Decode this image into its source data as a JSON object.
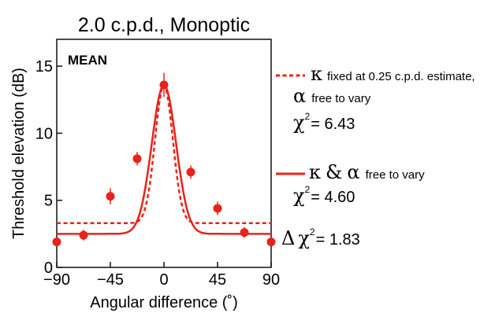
{
  "chart_data": {
    "type": "scatter",
    "title": "2.0 c.p.d., Monoptic",
    "annotation": "MEAN",
    "xlabel": "Angular difference (˚)",
    "ylabel": "Threshold elevation (dB)",
    "xlim": [
      -90,
      90
    ],
    "ylim": [
      0,
      17
    ],
    "xticks": [
      -90,
      -45,
      0,
      45,
      90
    ],
    "xtick_labels": [
      "−90",
      "−45",
      "0",
      "45",
      "90"
    ],
    "yticks": [
      0,
      5,
      10,
      15
    ],
    "ytick_labels": [
      "0",
      "5",
      "10",
      "15"
    ],
    "grid": false,
    "legend_position": "right",
    "colors": {
      "data": "#e8231a",
      "axis": "#111111"
    },
    "data_points": {
      "x": [
        -90,
        -67.5,
        -45,
        -22.5,
        0,
        22.5,
        45,
        67.5,
        90
      ],
      "y": [
        1.9,
        2.4,
        5.3,
        8.1,
        13.6,
        7.1,
        4.4,
        2.6,
        1.9
      ],
      "err": [
        0.3,
        0.4,
        0.6,
        0.5,
        0.9,
        0.5,
        0.5,
        0.4,
        0.3
      ]
    },
    "series": [
      {
        "style": "dashed",
        "baseline": 3.3,
        "peak": 13.6,
        "kappa": 0.009,
        "legend": {
          "symbol1": "κ",
          "text1": "fixed at 0.25 c.p.d. estimate,",
          "symbol2": "α",
          "text2": "free to vary",
          "chi_symbol": "χ",
          "chi_exponent": "2",
          "chi_value": "= 6.43"
        }
      },
      {
        "style": "solid",
        "baseline": 2.5,
        "peak": 13.6,
        "kappa": 0.0048,
        "legend": {
          "symbol1": "κ",
          "amp": "&",
          "symbol2": "α",
          "text": "free to vary",
          "chi_symbol": "χ",
          "chi_exponent": "2",
          "chi_value": "= 4.60"
        }
      }
    ],
    "delta_chi": {
      "delta": "Δ",
      "chi_symbol": "χ",
      "chi_exponent": "2",
      "value": "= 1.83"
    }
  }
}
